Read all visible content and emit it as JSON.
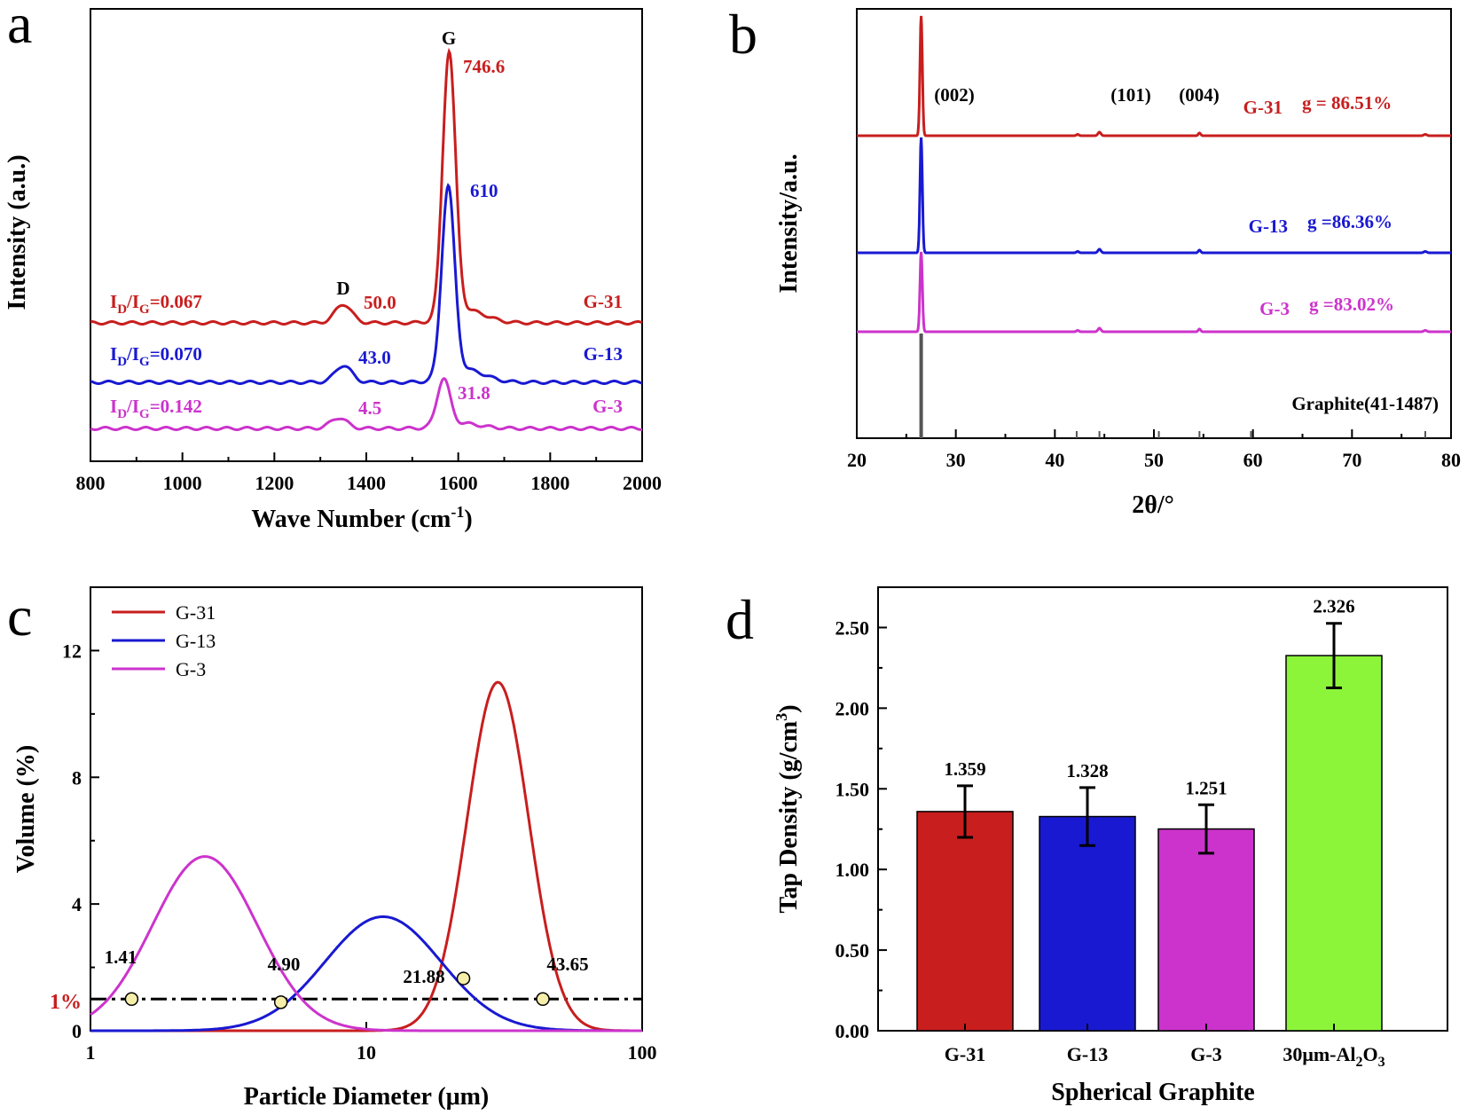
{
  "colors": {
    "red": "#c81e1e",
    "blue": "#1919d2",
    "magenta": "#cc33cc",
    "green": "#8cf53a",
    "black": "#000000",
    "gray": "#555555"
  },
  "panels": {
    "a": {
      "label": "a",
      "xlabel": "Wave Number (cm",
      "xlabel_sup": "-1",
      "xlabel_end": ")",
      "ylabel": "Intensity (a.u.)",
      "peak_D": "D",
      "peak_G": "G"
    },
    "b": {
      "label": "b",
      "xlabel": "2θ/°",
      "ylabel": "Intensity/a.u.",
      "ref_label": "Graphite(41-1487)"
    },
    "c": {
      "label": "c",
      "xlabel": "Particle Diameter (μm)",
      "ylabel": "Volume (%)",
      "ref_line_label": "1%"
    },
    "d": {
      "label": "d",
      "xlabel": "Spherical Graphite",
      "ylabel": "Tap Density (g/cm",
      "ylabel_sup": "3",
      "ylabel_end": ")"
    }
  },
  "chart_data": [
    {
      "panel": "a",
      "type": "line",
      "xlim": [
        800,
        2000
      ],
      "xticks": [
        "800",
        "1000",
        "1200",
        "1400",
        "1600",
        "1800",
        "2000"
      ],
      "series": [
        {
          "name": "G-31",
          "color": "red",
          "ratio_prefix": "I",
          "ratio_sub1": "D",
          "ratio_mid": "/I",
          "ratio_sub2": "G",
          "ratio_value": "=0.067",
          "d_label": "50.0",
          "g_label": "746.6",
          "d_center": 1350,
          "g_center": 1580,
          "d_height": 50.0,
          "g_height": 746.6
        },
        {
          "name": "G-13",
          "color": "blue",
          "ratio_prefix": "I",
          "ratio_sub1": "D",
          "ratio_mid": "/I",
          "ratio_sub2": "G",
          "ratio_value": "=0.070",
          "d_label": "43.0",
          "g_label": "610",
          "d_center": 1350,
          "g_center": 1578,
          "d_height": 43.0,
          "g_height": 610
        },
        {
          "name": "G-3",
          "color": "magenta",
          "ratio_prefix": "I",
          "ratio_sub1": "D",
          "ratio_mid": "/I",
          "ratio_sub2": "G",
          "ratio_value": "=0.142",
          "d_label": "4.5",
          "g_label": "31.8",
          "d_center": 1340,
          "g_center": 1568,
          "d_height": 4.5,
          "g_height": 31.8
        }
      ]
    },
    {
      "panel": "b",
      "type": "line",
      "xlim": [
        20,
        80
      ],
      "xticks": [
        "20",
        "30",
        "40",
        "50",
        "60",
        "70",
        "80"
      ],
      "peaks": [
        {
          "label": "(002)",
          "x": 26.5
        },
        {
          "label": "(101)",
          "x": 44.5
        },
        {
          "label": "(004)",
          "x": 54.6
        }
      ],
      "series": [
        {
          "name": "G-31",
          "g_label": "g = 86.51%",
          "color": "red"
        },
        {
          "name": "G-13",
          "g_label": "g =86.36%",
          "color": "blue"
        },
        {
          "name": "G-3",
          "g_label": "g =83.02%",
          "color": "magenta"
        }
      ],
      "reference_sticks": [
        26.5,
        42.2,
        44.5,
        50.5,
        54.6,
        59.8,
        77.4
      ]
    },
    {
      "panel": "c",
      "type": "line",
      "x_scale": "log",
      "xlim": [
        1,
        100
      ],
      "ylim": [
        0,
        14
      ],
      "xticks": [
        "1",
        "10",
        "100"
      ],
      "yticks": [
        "0",
        "4",
        "8",
        "12"
      ],
      "series": [
        {
          "name": "G-31",
          "color": "red",
          "peak_x": 30,
          "peak_y": 11.0,
          "log_sigma": 0.112
        },
        {
          "name": "G-13",
          "color": "blue",
          "peak_x": 11.5,
          "peak_y": 3.6,
          "log_sigma": 0.21
        },
        {
          "name": "G-3",
          "color": "magenta",
          "peak_x": 2.6,
          "peak_y": 5.5,
          "log_sigma": 0.19
        }
      ],
      "marker_points": [
        {
          "label": "1.41",
          "x": 1.41,
          "y": 1.0
        },
        {
          "label": "4.90",
          "x": 4.9,
          "y": 0.9
        },
        {
          "label": "21.88",
          "x": 22.5,
          "y": 1.65
        },
        {
          "label": "43.65",
          "x": 43.65,
          "y": 1.0
        }
      ],
      "hline_y": 1.0
    },
    {
      "panel": "d",
      "type": "bar",
      "ylim": [
        0,
        2.75
      ],
      "yticks": [
        "0.00",
        "0.50",
        "1.00",
        "1.50",
        "2.00",
        "2.50"
      ],
      "categories": [
        "G-31",
        "G-13",
        "G-3",
        "30μm-Al"
      ],
      "last_category_sub": "2",
      "last_category_mid": "O",
      "last_category_sub2": "3",
      "values": [
        1.359,
        1.328,
        1.251,
        2.326
      ],
      "labels": [
        "1.359",
        "1.328",
        "1.251",
        "2.326"
      ],
      "errors": [
        0.16,
        0.18,
        0.15,
        0.2
      ],
      "colors": [
        "red",
        "blue",
        "magenta",
        "green"
      ]
    }
  ]
}
